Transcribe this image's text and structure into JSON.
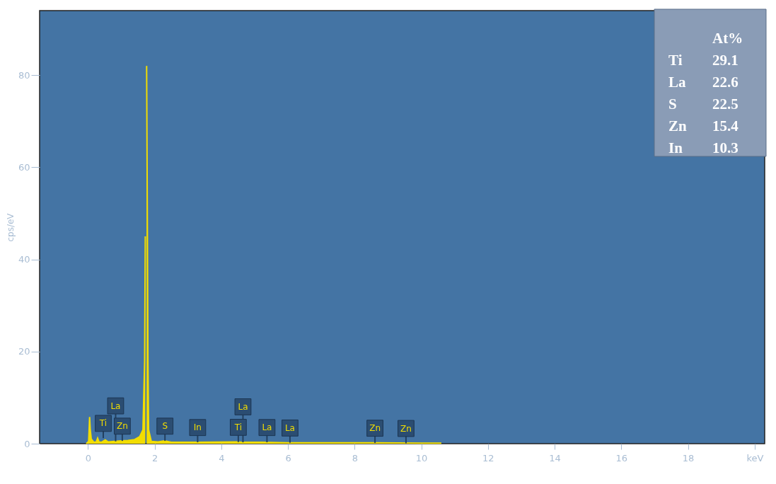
{
  "chart_data": {
    "type": "area",
    "ylabel": "cps/eV",
    "x": [
      -0.05,
      0.02,
      0.05,
      0.07,
      0.1,
      0.18,
      0.25,
      0.29,
      0.33,
      0.4,
      0.52,
      0.6,
      0.8,
      1.0,
      1.2,
      1.4,
      1.55,
      1.65,
      1.7,
      1.72,
      1.74,
      1.75,
      1.76,
      1.78,
      1.8,
      1.82,
      1.9,
      2.1,
      2.3,
      2.5,
      3.3,
      4.5,
      4.6,
      5.2,
      6.0,
      8.0,
      8.6,
      10.0,
      10.6
    ],
    "series": [
      {
        "color": "#f2dd00",
        "values": [
          0,
          0.5,
          5.8,
          3,
          1.0,
          0.3,
          0.4,
          1.2,
          0.4,
          0.3,
          0.8,
          0.4,
          0.5,
          0.6,
          0.7,
          0.9,
          1.5,
          3,
          18,
          45,
          null,
          null,
          82,
          52,
          18,
          3,
          0.5,
          0.4,
          0.6,
          0.3,
          0.3,
          0.4,
          0.3,
          0.3,
          0.2,
          0.2,
          0.2,
          0.1,
          0.1
        ]
      }
    ],
    "xlim": [
      -1.45,
      20.3
    ],
    "ylim": [
      0,
      94
    ],
    "xticks": [
      0,
      2,
      4,
      6,
      8,
      10,
      12,
      14,
      16,
      18,
      {
        "value": 20,
        "label": "keV"
      }
    ],
    "yticks": [
      0,
      20,
      40,
      60,
      80
    ],
    "grid": false,
    "annotations": [
      {
        "text": "Ti",
        "x": 0.46,
        "y": 1.2
      },
      {
        "text": "La",
        "x": 0.83,
        "y": 0.5
      },
      {
        "text": "Zn",
        "x": 1.03,
        "y": 0.6
      },
      {
        "text": "S",
        "x": 2.31,
        "y": 0.6
      },
      {
        "text": "In",
        "x": 3.29,
        "y": 0.3
      },
      {
        "text": "Ti",
        "x": 4.51,
        "y": 0.35
      },
      {
        "text": "La",
        "x": 4.65,
        "y": 0.3
      },
      {
        "text": "La",
        "x": 5.37,
        "y": 0.3
      },
      {
        "text": "La",
        "x": 6.06,
        "y": 0.2
      },
      {
        "text": "Zn",
        "x": 8.61,
        "y": 0.15
      },
      {
        "text": "Zn",
        "x": 9.54,
        "y": 0.1
      },
      "At%",
      "Ti 29.1",
      "La 22.6",
      "S 22.5",
      "Zn 15.4",
      "In 10.3"
    ]
  }
}
